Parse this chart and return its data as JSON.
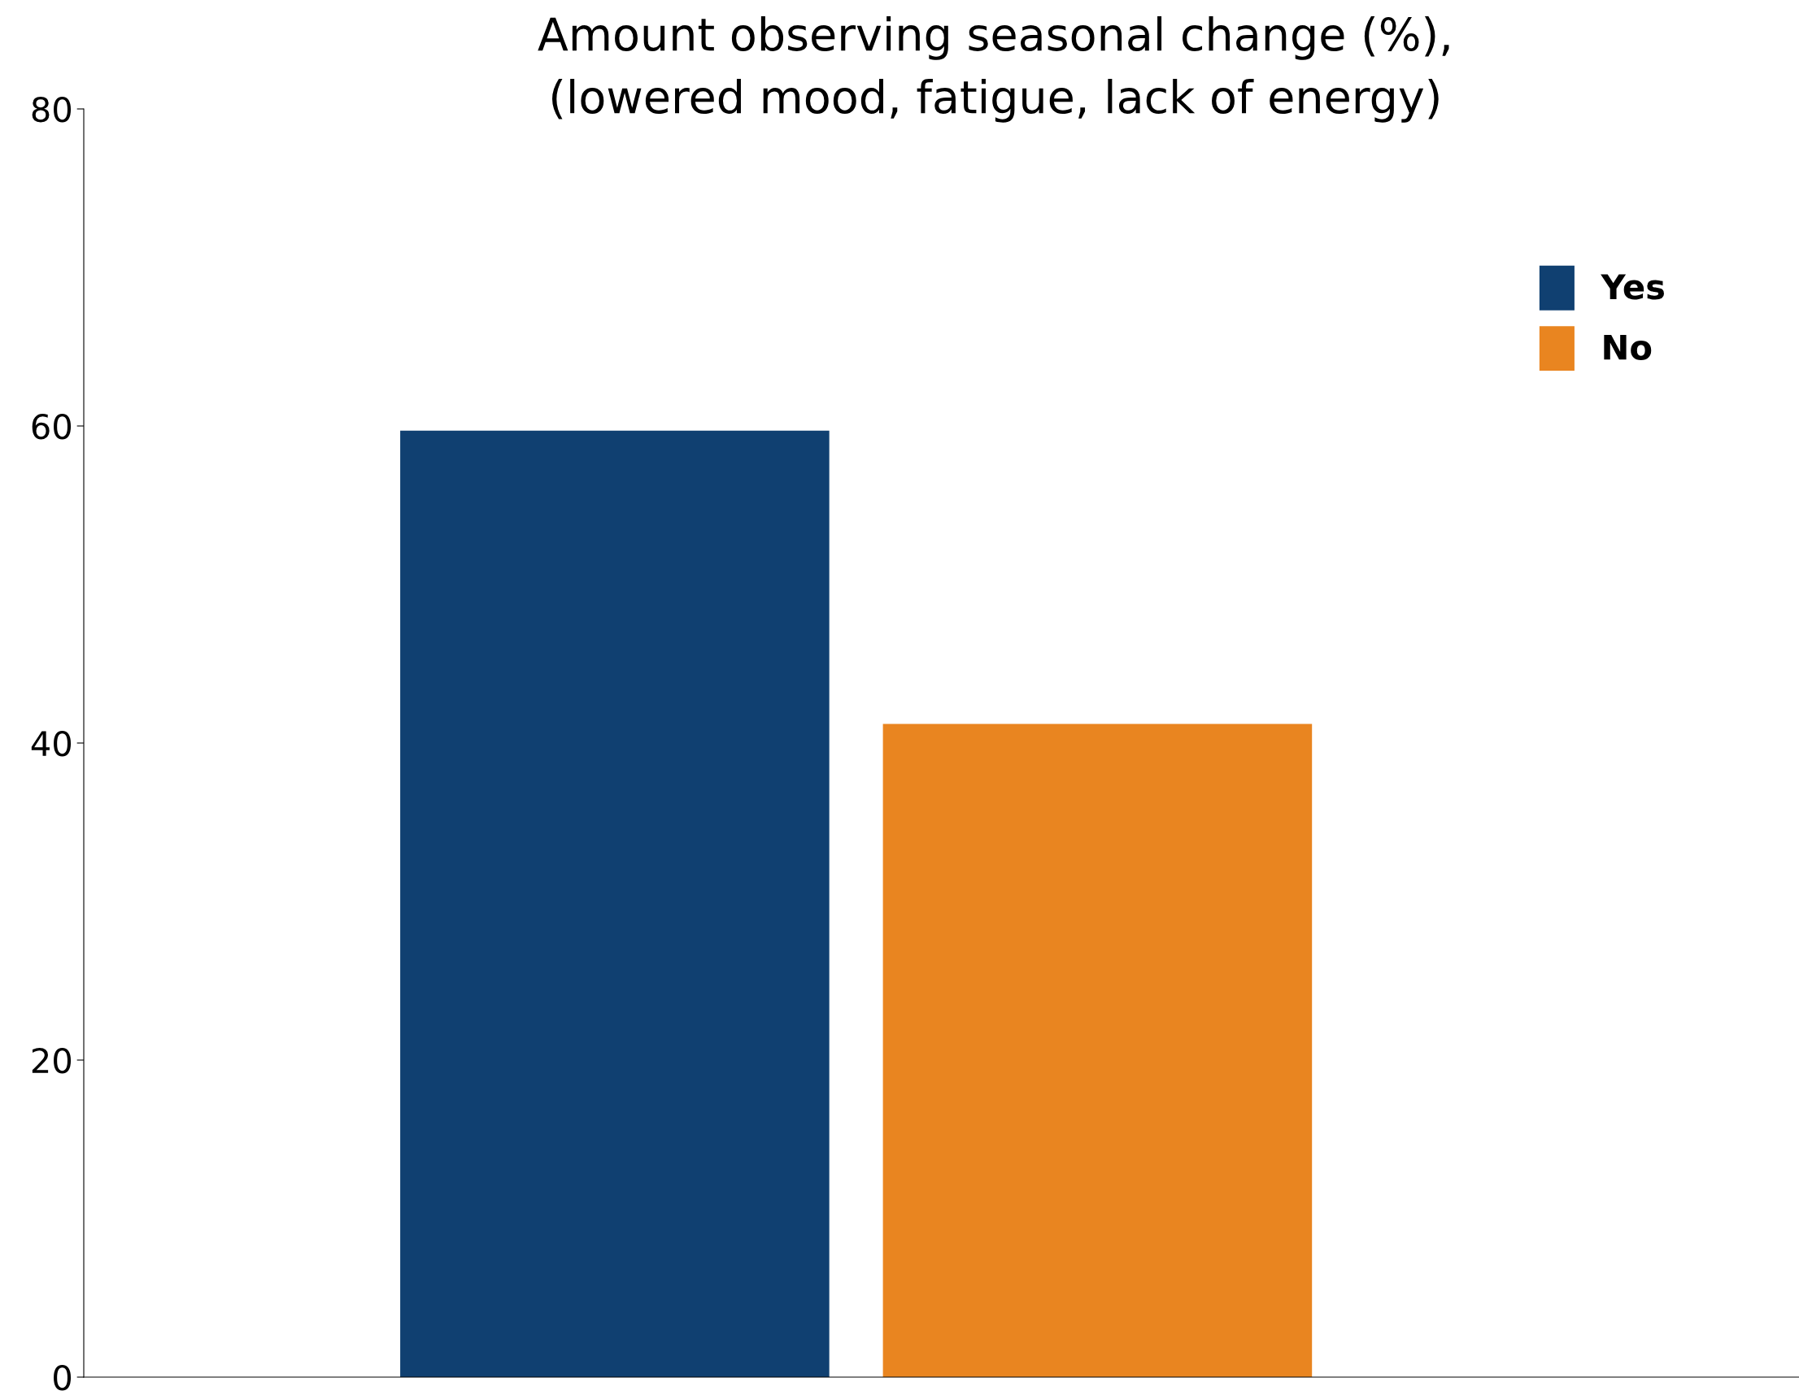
{
  "chart_data": {
    "type": "bar",
    "title": "Amount observing seasonal change (%),\n(lowered mood, fatigue, lack of energy)",
    "categories": [
      null
    ],
    "series": [
      {
        "name": "Yes",
        "color": "#104071",
        "values": [
          59.7
        ]
      },
      {
        "name": "No",
        "color": "#e98520",
        "values": [
          41.2
        ]
      }
    ],
    "ylim": [
      0,
      80
    ],
    "yticks": [
      0,
      20,
      40,
      60,
      80
    ],
    "grid": false,
    "legend": "top right",
    "tick_labels": "y"
  }
}
